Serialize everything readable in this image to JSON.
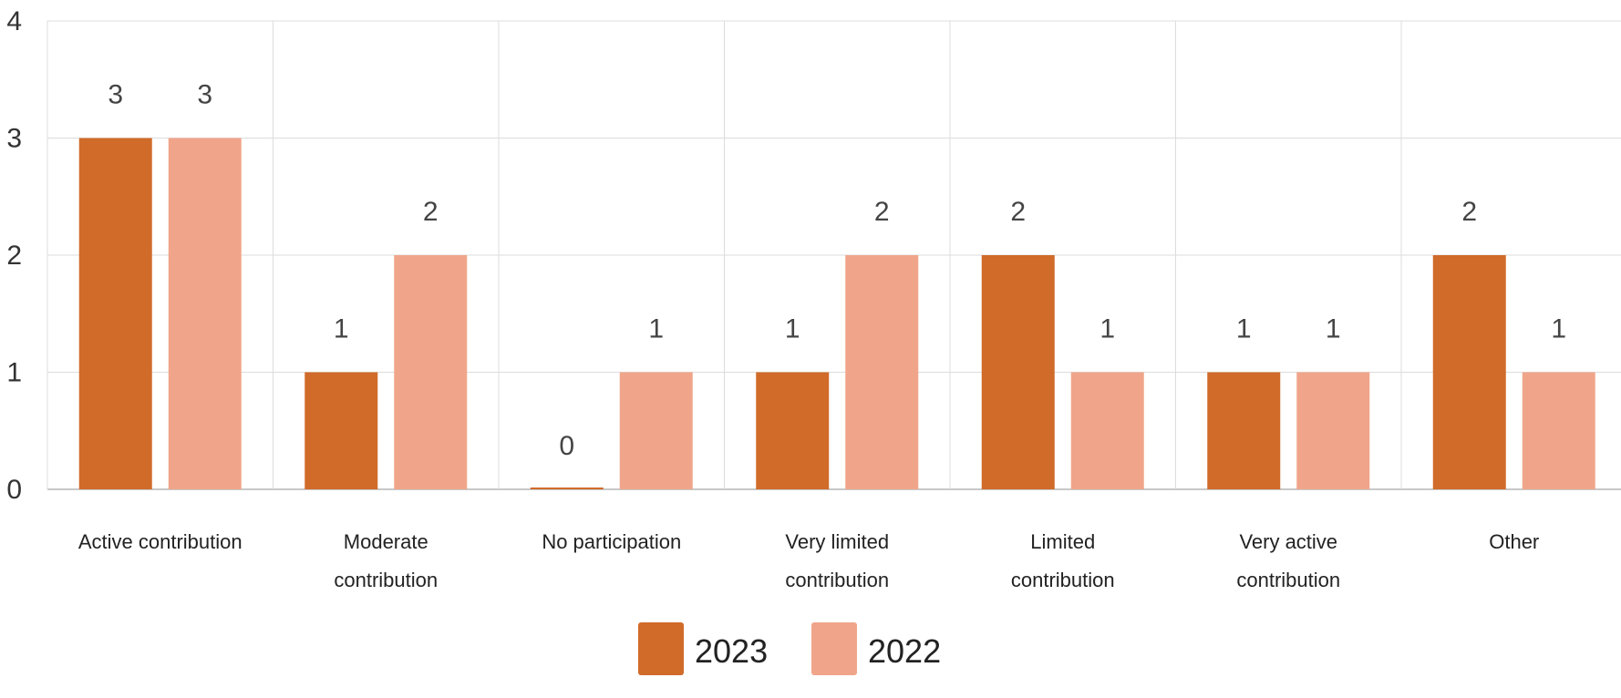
{
  "chart_data": {
    "type": "bar",
    "categories": [
      [
        "Active contribution"
      ],
      [
        "Moderate",
        "contribution"
      ],
      [
        "No participation"
      ],
      [
        "Very limited",
        "contribution"
      ],
      [
        "Limited",
        "contribution"
      ],
      [
        "Very active",
        "contribution"
      ],
      [
        "Other"
      ]
    ],
    "y_ticks": [
      "0",
      "1",
      "2",
      "3",
      "4"
    ],
    "ylim": [
      0,
      4
    ],
    "grid": true,
    "legend_position": "bottom-center",
    "series": [
      {
        "name": "2023",
        "color": "#d06b2a",
        "values": [
          3,
          1,
          0,
          1,
          2,
          1,
          2
        ],
        "labels": [
          "3",
          "1",
          "0",
          "1",
          "2",
          "1",
          "2"
        ]
      },
      {
        "name": "2022",
        "color": "#f0a58a",
        "values": [
          3,
          2,
          1,
          2,
          1,
          1,
          1
        ],
        "labels": [
          "3",
          "2",
          "1",
          "2",
          "1",
          "1",
          "1"
        ]
      }
    ]
  }
}
